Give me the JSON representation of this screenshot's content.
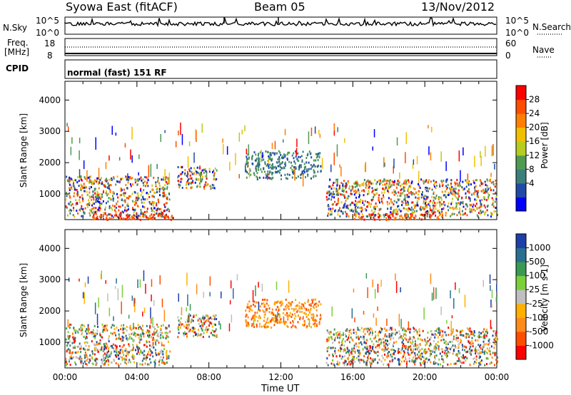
{
  "header": {
    "station": "Syowa East (fitACF)",
    "beam": "Beam 05",
    "date": "13/Nov/2012"
  },
  "nsky_panel": {
    "left_label": "N.Sky",
    "left_ticks": [
      "10^5",
      "10^0"
    ],
    "right_ticks": [
      "10^5",
      "10^0"
    ],
    "right_label": "N.Search"
  },
  "freq_panel": {
    "label_line1": "Freq.",
    "label_line2": "[MHz]",
    "left_ticks": [
      "18",
      "8"
    ],
    "right_ticks": [
      "60",
      "0"
    ],
    "right_label": "Nave"
  },
  "cpid_panel": {
    "label": "CPID",
    "mode": "normal (fast) 151 RF"
  },
  "xaxis": {
    "label": "Time UT",
    "ticks": [
      "00:00",
      "04:00",
      "08:00",
      "12:00",
      "16:00",
      "20:00",
      "00:00"
    ]
  },
  "chart_data": [
    {
      "type": "heatmap",
      "panel": "power",
      "ylabel": "Slant Range [km]",
      "yticks": [
        1000,
        2000,
        3000,
        4000
      ],
      "ylim": [
        180,
        4600
      ],
      "xlim_hours": [
        0,
        24
      ],
      "colorbar": {
        "label": "Power [dB]",
        "ticks": [
          "28",
          "24",
          "20",
          "16",
          "12",
          "8",
          "4"
        ],
        "colors": [
          "#0000ff",
          "#1f4aa8",
          "#3a7f7a",
          "#4f9a52",
          "#b7cc1f",
          "#f0c000",
          "#ff8000",
          "#ff4d00",
          "#ff0000"
        ]
      },
      "scatter_bands": [
        {
          "t0": 0.0,
          "t1": 5.8,
          "r0": 300,
          "r1": 1600,
          "level": "mid"
        },
        {
          "t0": 6.2,
          "t1": 8.4,
          "r0": 1200,
          "r1": 1900,
          "level": "mid"
        },
        {
          "t0": 10.0,
          "t1": 14.2,
          "r0": 1500,
          "r1": 2400,
          "level": "low"
        },
        {
          "t0": 14.5,
          "t1": 24.0,
          "r0": 300,
          "r1": 1500,
          "level": "mid"
        },
        {
          "t0": 16.0,
          "t1": 21.0,
          "r0": 200,
          "r1": 400,
          "level": "high"
        },
        {
          "t0": 1.5,
          "t1": 6.0,
          "r0": 200,
          "r1": 400,
          "level": "high"
        }
      ]
    },
    {
      "type": "heatmap",
      "panel": "velocity",
      "ylabel": "Slant Range [km]",
      "yticks": [
        1000,
        2000,
        3000,
        4000
      ],
      "ylim": [
        180,
        4600
      ],
      "xlim_hours": [
        0,
        24
      ],
      "colorbar": {
        "label": "Velocity [m s-1]",
        "ticks": [
          "1000",
          "500",
          "100",
          "25",
          "-25",
          "-100",
          "-500",
          "-1000"
        ],
        "colors": [
          "#ff0000",
          "#ff4d00",
          "#ff8c1a",
          "#ffb000",
          "#bfbfbf",
          "#7ad03a",
          "#3a9a52",
          "#2a6f8f",
          "#1f3fa8"
        ]
      },
      "scatter_bands": [
        {
          "t0": 0.0,
          "t1": 5.8,
          "r0": 300,
          "r1": 1600,
          "level": "mid"
        },
        {
          "t0": 6.2,
          "t1": 8.4,
          "r0": 1200,
          "r1": 1900,
          "level": "mid"
        },
        {
          "t0": 10.0,
          "t1": 14.2,
          "r0": 1500,
          "r1": 2400,
          "level": "low"
        },
        {
          "t0": 14.5,
          "t1": 24.0,
          "r0": 300,
          "r1": 1500,
          "level": "mid"
        }
      ]
    }
  ]
}
